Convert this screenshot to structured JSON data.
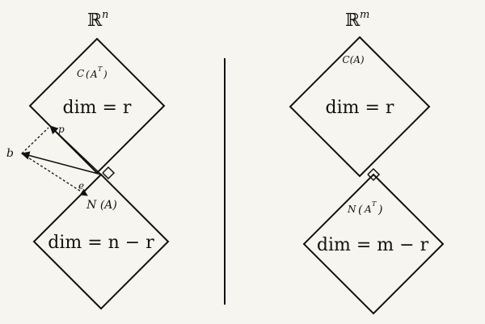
{
  "left_space": {
    "symbol": "ℝ",
    "exponent": "n"
  },
  "right_space": {
    "symbol": "ℝ",
    "exponent": "m"
  },
  "left_top": {
    "label_main": "C",
    "label_sup": "T",
    "label_base": "A",
    "dim": "dim = r"
  },
  "left_bottom": {
    "label": "N (A)",
    "dim": "dim = n − r"
  },
  "right_top": {
    "label": "C(A)",
    "dim": "dim = r"
  },
  "right_bottom": {
    "label_main": "N",
    "label_base": "A",
    "label_sup": "T",
    "dim": "dim = m − r"
  },
  "vectors": {
    "b": "b",
    "p": "p",
    "e": "e"
  }
}
